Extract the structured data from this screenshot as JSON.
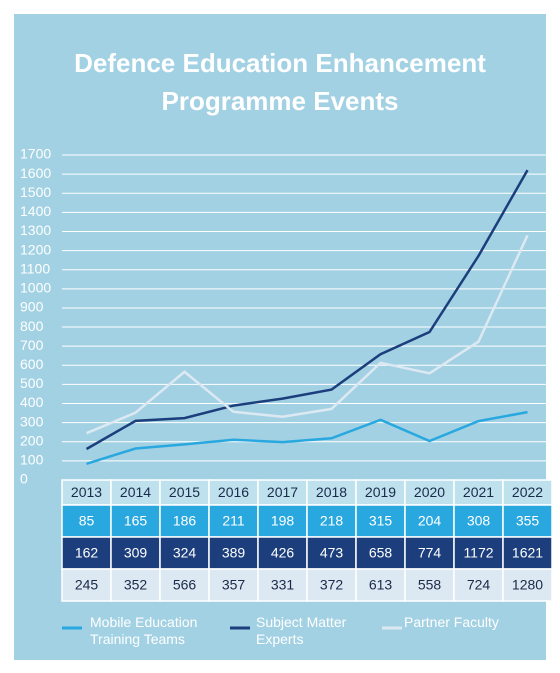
{
  "chart_data": {
    "type": "line",
    "title": "Defence Education Enhancement Programme Events",
    "categories": [
      "2013",
      "2014",
      "2015",
      "2016",
      "2017",
      "2018",
      "2019",
      "2020",
      "2021",
      "2022"
    ],
    "series": [
      {
        "name": "Mobile Education Training Teams",
        "color": "#29a8e0",
        "values": [
          85,
          165,
          186,
          211,
          198,
          218,
          315,
          204,
          308,
          355
        ]
      },
      {
        "name": "Subject Matter Experts",
        "color": "#1c3e7c",
        "values": [
          162,
          309,
          324,
          389,
          426,
          473,
          658,
          774,
          1172,
          1621
        ]
      },
      {
        "name": "Partner Faculty",
        "color": "#dde9f2",
        "values": [
          245,
          352,
          566,
          357,
          331,
          372,
          613,
          558,
          724,
          1280
        ]
      }
    ],
    "ylim": [
      0,
      1700
    ],
    "yticks": [
      0,
      100,
      200,
      300,
      400,
      500,
      600,
      700,
      800,
      900,
      1000,
      1100,
      1200,
      1300,
      1400,
      1500,
      1600,
      1700
    ],
    "grid": true,
    "legend": "bottom"
  }
}
